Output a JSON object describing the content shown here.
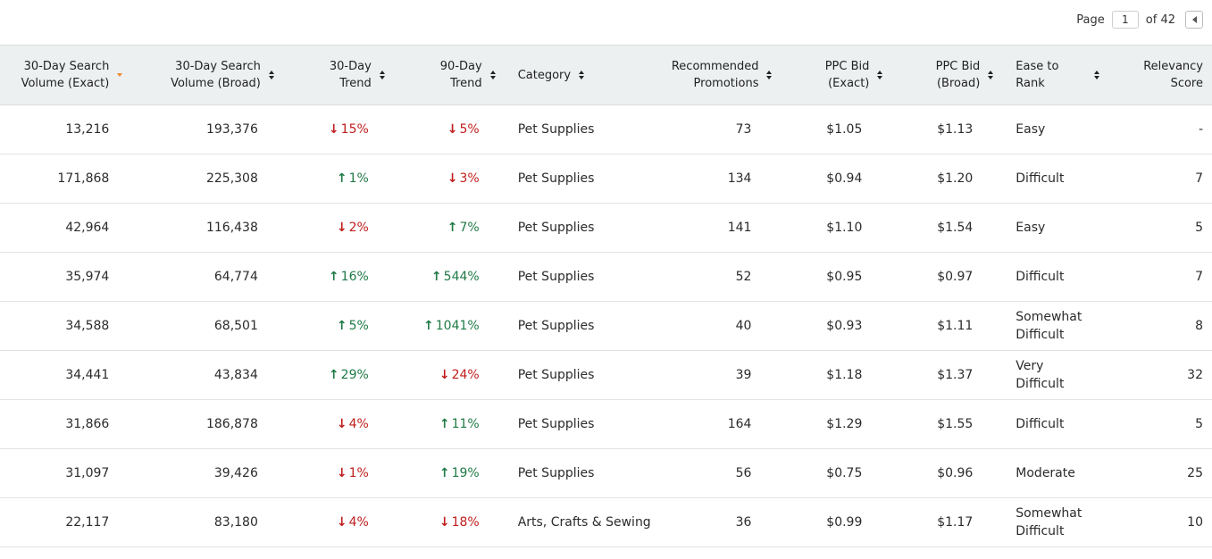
{
  "pagination": {
    "page_label": "Page",
    "current_page": "1",
    "of_label": "of 42"
  },
  "columns": [
    "30-Day Search Volume (Exact)",
    "30-Day Search Volume (Broad)",
    "30-Day Trend",
    "90-Day Trend",
    "Category",
    "Recommended Promotions",
    "PPC Bid (Exact)",
    "PPC Bid (Broad)",
    "Ease to Rank",
    "Relevancy Score"
  ],
  "header_lines": [
    [
      "30-Day Search",
      "Volume (Exact)"
    ],
    [
      "30-Day Search",
      "Volume (Broad)"
    ],
    [
      "30-Day",
      "Trend"
    ],
    [
      "90-Day",
      "Trend"
    ],
    [
      "Category",
      ""
    ],
    [
      "Recommended",
      "Promotions"
    ],
    [
      "PPC Bid",
      "(Exact)"
    ],
    [
      "PPC Bid",
      "(Broad)"
    ],
    [
      "Ease to",
      "Rank"
    ],
    [
      "Relevancy",
      "Score"
    ]
  ],
  "sort": {
    "column": "30-Day Search Volume (Exact)",
    "direction": "descending"
  },
  "colors": {
    "trend_down": "#c01d1d",
    "trend_up": "#1f7a46",
    "sort_active": "#e8892e",
    "header_bg": "#edf0f1"
  },
  "rows": [
    {
      "vol_exact": "13,216",
      "vol_broad": "193,376",
      "trend30": "15%",
      "trend30_dir": "down",
      "trend90": "5%",
      "trend90_dir": "down",
      "category": "Pet Supplies",
      "promotions": "73",
      "ppc_exact": "$1.05",
      "ppc_broad": "$1.13",
      "ease": "Easy",
      "relevancy": "-"
    },
    {
      "vol_exact": "171,868",
      "vol_broad": "225,308",
      "trend30": "1%",
      "trend30_dir": "up",
      "trend90": "3%",
      "trend90_dir": "down",
      "category": "Pet Supplies",
      "promotions": "134",
      "ppc_exact": "$0.94",
      "ppc_broad": "$1.20",
      "ease": "Difficult",
      "relevancy": "7"
    },
    {
      "vol_exact": "42,964",
      "vol_broad": "116,438",
      "trend30": "2%",
      "trend30_dir": "down",
      "trend90": "7%",
      "trend90_dir": "up",
      "category": "Pet Supplies",
      "promotions": "141",
      "ppc_exact": "$1.10",
      "ppc_broad": "$1.54",
      "ease": "Easy",
      "relevancy": "5"
    },
    {
      "vol_exact": "35,974",
      "vol_broad": "64,774",
      "trend30": "16%",
      "trend30_dir": "up",
      "trend90": "544%",
      "trend90_dir": "up",
      "category": "Pet Supplies",
      "promotions": "52",
      "ppc_exact": "$0.95",
      "ppc_broad": "$0.97",
      "ease": "Difficult",
      "relevancy": "7"
    },
    {
      "vol_exact": "34,588",
      "vol_broad": "68,501",
      "trend30": "5%",
      "trend30_dir": "up",
      "trend90": "1041%",
      "trend90_dir": "up",
      "category": "Pet Supplies",
      "promotions": "40",
      "ppc_exact": "$0.93",
      "ppc_broad": "$1.11",
      "ease": "Somewhat Difficult",
      "relevancy": "8"
    },
    {
      "vol_exact": "34,441",
      "vol_broad": "43,834",
      "trend30": "29%",
      "trend30_dir": "up",
      "trend90": "24%",
      "trend90_dir": "down",
      "category": "Pet Supplies",
      "promotions": "39",
      "ppc_exact": "$1.18",
      "ppc_broad": "$1.37",
      "ease": "Very Difficult",
      "relevancy": "32"
    },
    {
      "vol_exact": "31,866",
      "vol_broad": "186,878",
      "trend30": "4%",
      "trend30_dir": "down",
      "trend90": "11%",
      "trend90_dir": "up",
      "category": "Pet Supplies",
      "promotions": "164",
      "ppc_exact": "$1.29",
      "ppc_broad": "$1.55",
      "ease": "Difficult",
      "relevancy": "5"
    },
    {
      "vol_exact": "31,097",
      "vol_broad": "39,426",
      "trend30": "1%",
      "trend30_dir": "down",
      "trend90": "19%",
      "trend90_dir": "up",
      "category": "Pet Supplies",
      "promotions": "56",
      "ppc_exact": "$0.75",
      "ppc_broad": "$0.96",
      "ease": "Moderate",
      "relevancy": "25"
    },
    {
      "vol_exact": "22,117",
      "vol_broad": "83,180",
      "trend30": "4%",
      "trend30_dir": "down",
      "trend90": "18%",
      "trend90_dir": "down",
      "category": "Arts, Crafts & Sewing",
      "promotions": "36",
      "ppc_exact": "$0.99",
      "ppc_broad": "$1.17",
      "ease": "Somewhat Difficult",
      "relevancy": "10"
    }
  ]
}
